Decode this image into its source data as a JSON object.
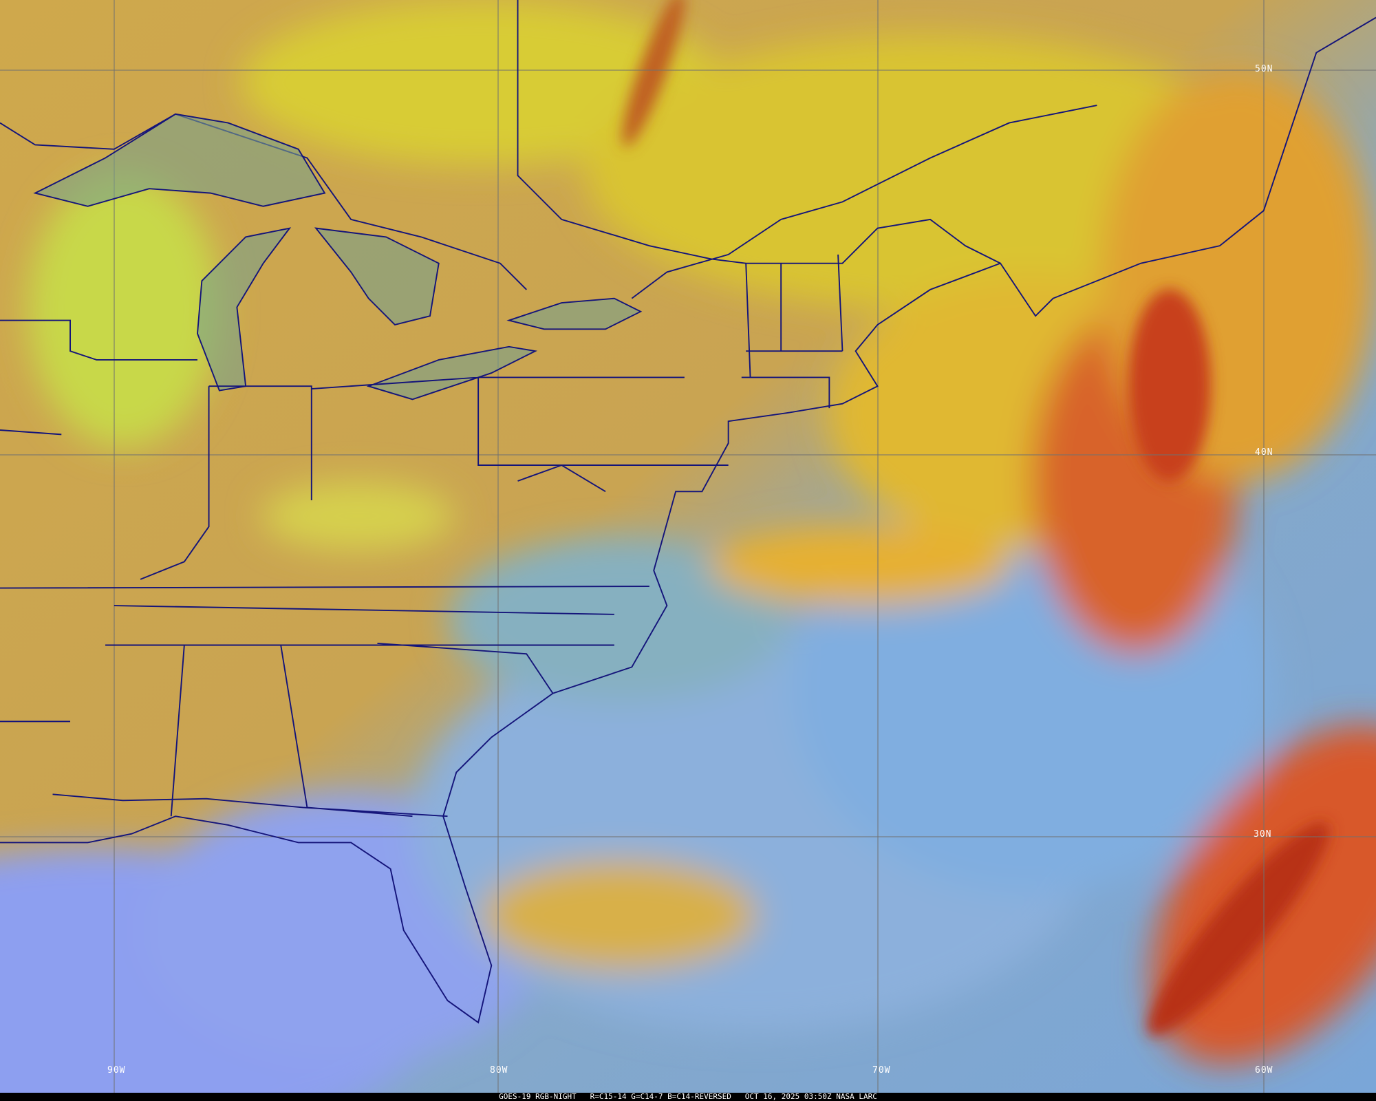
{
  "caption": {
    "satellite_product": "GOES-19 RGB-NIGHT",
    "channels": "R=C15-14 G=C14-7 B=C14-REVERSED",
    "datetime": "OCT 16, 2025 03:50Z",
    "credit": "NASA LARC"
  },
  "grid_labels": {
    "lat_50": "50N",
    "lat_40": "40N",
    "lat_30": "30N",
    "lon_90": "90W",
    "lon_80": "80W",
    "lon_70": "70W",
    "lon_60": "60W"
  },
  "colors": {
    "land": "#c8a64e",
    "north_cloud": "#d6c83a",
    "ocean": "#7fa6d6",
    "gulf": "#8d9ff0",
    "high_cloud": "#c8401e",
    "border": "#14147a",
    "grid": "#707070"
  }
}
